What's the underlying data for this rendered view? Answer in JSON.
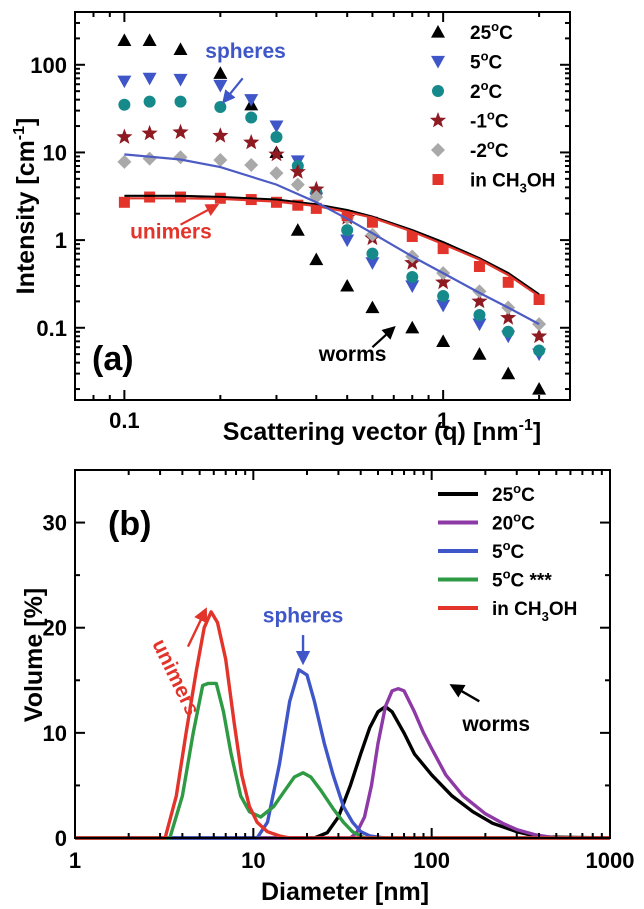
{
  "chart_data": [
    {
      "panel": "(a)",
      "type": "scatter",
      "xlabel": "Scattering vector (q) [nm-1]",
      "xlabel_parts": {
        "main": "Scattering vector (q) [nm",
        "sup": "-1",
        "close": "]"
      },
      "ylabel": "Intensity [cm-1]",
      "ylabel_parts": {
        "main": "Intensity [cm",
        "sup": "-1",
        "close": "]"
      },
      "xscale": "log",
      "yscale": "log",
      "xlim": [
        0.07,
        2.5
      ],
      "ylim": [
        0.015,
        400
      ],
      "xticks": [
        0.1,
        1
      ],
      "xtick_labels": [
        "0.1",
        "1"
      ],
      "yticks": [
        0.1,
        1,
        10,
        100
      ],
      "ytick_labels": [
        "0.1",
        "1",
        "10",
        "100"
      ],
      "legend_position": "top-right",
      "series": [
        {
          "name": "25°C",
          "name_parts": {
            "pre": "25",
            "sup": "o",
            "post": "C"
          },
          "marker": "triangle-up",
          "color": "#000000",
          "x": [
            0.1,
            0.12,
            0.15,
            0.2,
            0.25,
            0.3,
            0.35,
            0.4,
            0.5,
            0.6,
            0.8,
            1.0,
            1.3,
            1.6,
            2.0
          ],
          "y": [
            190,
            190,
            150,
            80,
            35,
            10,
            1.3,
            0.6,
            0.3,
            0.17,
            0.1,
            0.07,
            0.05,
            0.03,
            0.02
          ]
        },
        {
          "name": "5°C",
          "name_parts": {
            "pre": "5",
            "sup": "o",
            "post": "C"
          },
          "marker": "triangle-down",
          "color": "#3f56c8",
          "x": [
            0.1,
            0.12,
            0.15,
            0.2,
            0.25,
            0.3,
            0.35,
            0.4,
            0.5,
            0.6,
            0.8,
            1.0,
            1.3,
            1.6,
            2.0
          ],
          "y": [
            65,
            70,
            68,
            58,
            40,
            20,
            8,
            3,
            1,
            0.55,
            0.3,
            0.18,
            0.11,
            0.08,
            0.05
          ]
        },
        {
          "name": "2°C",
          "name_parts": {
            "pre": "2",
            "sup": "o",
            "post": "C"
          },
          "marker": "circle",
          "color": "#168a8a",
          "x": [
            0.1,
            0.12,
            0.15,
            0.2,
            0.25,
            0.3,
            0.35,
            0.4,
            0.5,
            0.6,
            0.8,
            1.0,
            1.3,
            1.6,
            2.0
          ],
          "y": [
            35,
            38,
            38,
            33,
            25,
            15,
            7,
            3.5,
            1.3,
            0.7,
            0.38,
            0.23,
            0.14,
            0.09,
            0.055
          ]
        },
        {
          "name": "-1°C",
          "name_parts": {
            "pre": "-1",
            "sup": "o",
            "post": "C"
          },
          "marker": "star",
          "color": "#8e1a22",
          "x": [
            0.1,
            0.12,
            0.15,
            0.2,
            0.25,
            0.3,
            0.35,
            0.4,
            0.5,
            0.6,
            0.8,
            1.0,
            1.3,
            1.6,
            2.0
          ],
          "y": [
            15,
            16.5,
            17,
            15.5,
            13,
            9.5,
            6,
            3.8,
            1.8,
            1.05,
            0.55,
            0.33,
            0.2,
            0.13,
            0.08
          ]
        },
        {
          "name": "-2°C",
          "name_parts": {
            "pre": "-2",
            "sup": "o",
            "post": "C"
          },
          "marker": "diamond",
          "color": "#a9a9a9",
          "x": [
            0.1,
            0.12,
            0.15,
            0.2,
            0.25,
            0.3,
            0.35,
            0.4,
            0.5,
            0.6,
            0.8,
            1.0,
            1.3,
            1.6,
            2.0
          ],
          "y": [
            7.8,
            8.5,
            8.8,
            8.2,
            7.2,
            5.8,
            4.3,
            3.1,
            1.8,
            1.15,
            0.65,
            0.42,
            0.26,
            0.17,
            0.11
          ]
        },
        {
          "name": "in CH3OH",
          "name_parts": {
            "pre": "in CH",
            "sub": "3",
            "post": "OH"
          },
          "marker": "square",
          "color": "#e3342b",
          "x": [
            0.1,
            0.12,
            0.15,
            0.2,
            0.25,
            0.3,
            0.35,
            0.4,
            0.5,
            0.6,
            0.8,
            1.0,
            1.3,
            1.6,
            2.0
          ],
          "y": [
            2.7,
            3.1,
            3.1,
            3.0,
            2.9,
            2.7,
            2.5,
            2.3,
            1.9,
            1.6,
            1.1,
            0.8,
            0.5,
            0.33,
            0.21
          ]
        }
      ],
      "fits": [
        {
          "color": "#000000",
          "x": [
            0.1,
            0.15,
            0.2,
            0.3,
            0.4,
            0.5,
            0.6,
            0.8,
            1.0,
            1.3,
            1.6,
            2.0
          ],
          "y": [
            3.2,
            3.2,
            3.1,
            2.9,
            2.55,
            2.2,
            1.85,
            1.3,
            0.95,
            0.62,
            0.42,
            0.24
          ]
        },
        {
          "color": "#e3342b",
          "x": [
            0.1,
            0.15,
            0.2,
            0.3,
            0.4,
            0.5,
            0.6,
            0.8,
            1.0,
            1.3,
            1.6,
            2.0
          ],
          "y": [
            3.0,
            3.0,
            2.95,
            2.75,
            2.45,
            2.1,
            1.8,
            1.25,
            0.9,
            0.6,
            0.4,
            0.23
          ]
        },
        {
          "color": "#4c5cc4",
          "x": [
            0.1,
            0.15,
            0.2,
            0.3,
            0.4,
            0.5,
            0.6,
            0.8,
            1.0,
            1.3,
            1.6,
            2.0
          ],
          "y": [
            9.5,
            8.3,
            6.8,
            4.3,
            2.7,
            1.75,
            1.2,
            0.65,
            0.42,
            0.25,
            0.17,
            0.11
          ]
        }
      ],
      "annotations": [
        {
          "text": "spheres",
          "color": "#3f56c8",
          "x": 0.24,
          "y": 120,
          "arrow_from": [
            0.235,
            70
          ],
          "arrow_to": [
            0.205,
            38
          ]
        },
        {
          "text": "unimers",
          "color": "#e3342b",
          "x": 0.14,
          "y": 1.05,
          "arrow_from": [
            0.15,
            1.5
          ],
          "arrow_to": [
            0.195,
            2.5
          ]
        },
        {
          "text": "worms",
          "color": "#000000",
          "x": 0.52,
          "y": 0.042,
          "arrow_from": [
            0.6,
            0.06
          ],
          "arrow_to": [
            0.7,
            0.1
          ]
        }
      ]
    },
    {
      "panel": "(b)",
      "type": "line",
      "xlabel": "Diameter [nm]",
      "ylabel": "Volume [%]",
      "xscale": "log",
      "xlim": [
        1,
        1000
      ],
      "ylim": [
        0,
        35
      ],
      "xticks": [
        1,
        10,
        100,
        1000
      ],
      "xtick_labels": [
        "1",
        "10",
        "100",
        "1000"
      ],
      "yticks": [
        0,
        10,
        20,
        30
      ],
      "ytick_labels": [
        "0",
        "10",
        "20",
        "30"
      ],
      "legend_position": "top-right",
      "series": [
        {
          "name": "25°C",
          "name_parts": {
            "pre": "25",
            "sup": "o",
            "post": "C"
          },
          "color": "#000000",
          "x": [
            1,
            22,
            26,
            30,
            35,
            40,
            45,
            50,
            55,
            60,
            70,
            80,
            100,
            130,
            170,
            220,
            300,
            400,
            1000
          ],
          "y": [
            0,
            0,
            0.5,
            2,
            5,
            8,
            10.5,
            12,
            12.5,
            12,
            10,
            8,
            6,
            4,
            2.5,
            1.4,
            0.6,
            0.1,
            0
          ]
        },
        {
          "name": "20°C",
          "name_parts": {
            "pre": "20",
            "sup": "o",
            "post": "C"
          },
          "color": "#8e3aa6",
          "x": [
            1,
            35,
            38,
            42,
            46,
            50,
            55,
            60,
            65,
            70,
            80,
            90,
            100,
            120,
            150,
            200,
            250,
            300,
            380,
            500,
            1000
          ],
          "y": [
            0,
            0,
            0.5,
            2,
            5,
            9,
            12.5,
            14,
            14.2,
            14,
            12,
            10,
            8.5,
            6,
            4,
            2.3,
            1.4,
            0.8,
            0.3,
            0,
            0
          ]
        },
        {
          "name": "5°C",
          "name_parts": {
            "pre": "5",
            "sup": "o",
            "post": "C"
          },
          "color": "#3f56c8",
          "x": [
            1,
            10.5,
            12,
            14,
            16,
            18,
            20,
            22,
            25,
            28,
            32,
            36,
            40,
            45,
            55,
            1000
          ],
          "y": [
            0,
            0,
            1.5,
            7,
            13,
            16,
            15.5,
            13,
            9,
            6,
            3,
            1.5,
            0.6,
            0.2,
            0,
            0
          ]
        },
        {
          "name": "5°C ***",
          "name_parts": {
            "pre": "5",
            "sup": "o",
            "post": "C ***"
          },
          "color": "#2e9a44",
          "x": [
            1,
            3.4,
            4,
            4.6,
            5.2,
            5.6,
            6.2,
            6.8,
            7.5,
            8.5,
            9.5,
            11,
            13,
            15,
            17,
            19,
            21,
            24,
            28,
            32,
            36,
            42,
            1000
          ],
          "y": [
            0,
            0,
            4,
            10,
            14.5,
            14.7,
            14.7,
            12,
            8,
            4,
            2.5,
            2,
            3,
            4.5,
            5.8,
            6.2,
            5.8,
            4.5,
            2.8,
            1.5,
            0.6,
            0,
            0
          ]
        },
        {
          "name": "in CH3OH",
          "name_parts": {
            "pre": "in CH",
            "sub": "3",
            "post": "OH"
          },
          "color": "#e3342b",
          "x": [
            1,
            3.2,
            3.7,
            4.2,
            4.8,
            5.3,
            5.8,
            6.3,
            7.0,
            7.8,
            8.6,
            9.5,
            10.5,
            12,
            14,
            16,
            1000
          ],
          "y": [
            0,
            0,
            4,
            10,
            16,
            20,
            21.5,
            20.5,
            17,
            11,
            6,
            3,
            1.5,
            0.6,
            0.2,
            0,
            0
          ]
        }
      ],
      "annotations": [
        {
          "text": "spheres",
          "color": "#3f56c8",
          "x": 19,
          "y": 20.5,
          "arrow_from": [
            19,
            19.3
          ],
          "arrow_to": [
            19,
            16.7
          ]
        },
        {
          "text": "unimers",
          "color": "#e3342b",
          "x": 3.4,
          "y": 15,
          "rotate": 64,
          "arrow_from": [
            4.3,
            18.2
          ],
          "arrow_to": [
            5.4,
            21.7
          ]
        },
        {
          "text": "worms",
          "color": "#000000",
          "x": 230,
          "y": 10.2,
          "arrow_from": [
            185,
            13
          ],
          "arrow_to": [
            130,
            14.5
          ]
        }
      ]
    }
  ]
}
